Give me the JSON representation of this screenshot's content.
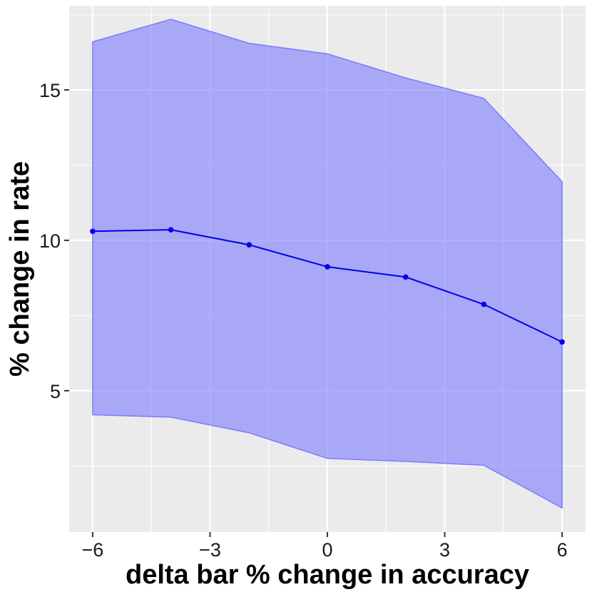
{
  "chart_data": {
    "type": "line",
    "xlabel": "delta bar % change in accuracy",
    "ylabel": "% change in rate",
    "xlim": [
      -6.6,
      6.6
    ],
    "ylim": [
      0.3,
      17.8
    ],
    "x_ticks": [
      -6,
      -3,
      0,
      3,
      6
    ],
    "x_tick_labels": [
      "−6",
      "−3",
      "0",
      "3",
      "6"
    ],
    "y_ticks": [
      5,
      10,
      15
    ],
    "y_tick_labels": [
      "5",
      "10",
      "15"
    ],
    "grid": true,
    "series": [
      {
        "x": [
          -6,
          -4,
          -2,
          0,
          2,
          4,
          6
        ],
        "y": [
          10.3,
          10.35,
          9.85,
          9.12,
          8.78,
          7.87,
          6.62
        ],
        "lower": [
          4.2,
          4.12,
          3.6,
          2.75,
          2.65,
          2.52,
          1.1
        ],
        "upper": [
          16.6,
          17.35,
          16.55,
          16.2,
          15.4,
          14.72,
          11.95
        ]
      }
    ],
    "colors": {
      "line": "#0000ee",
      "ribbon": "#7b7bff",
      "panel": "#ebebeb",
      "grid": "#ffffff"
    }
  }
}
